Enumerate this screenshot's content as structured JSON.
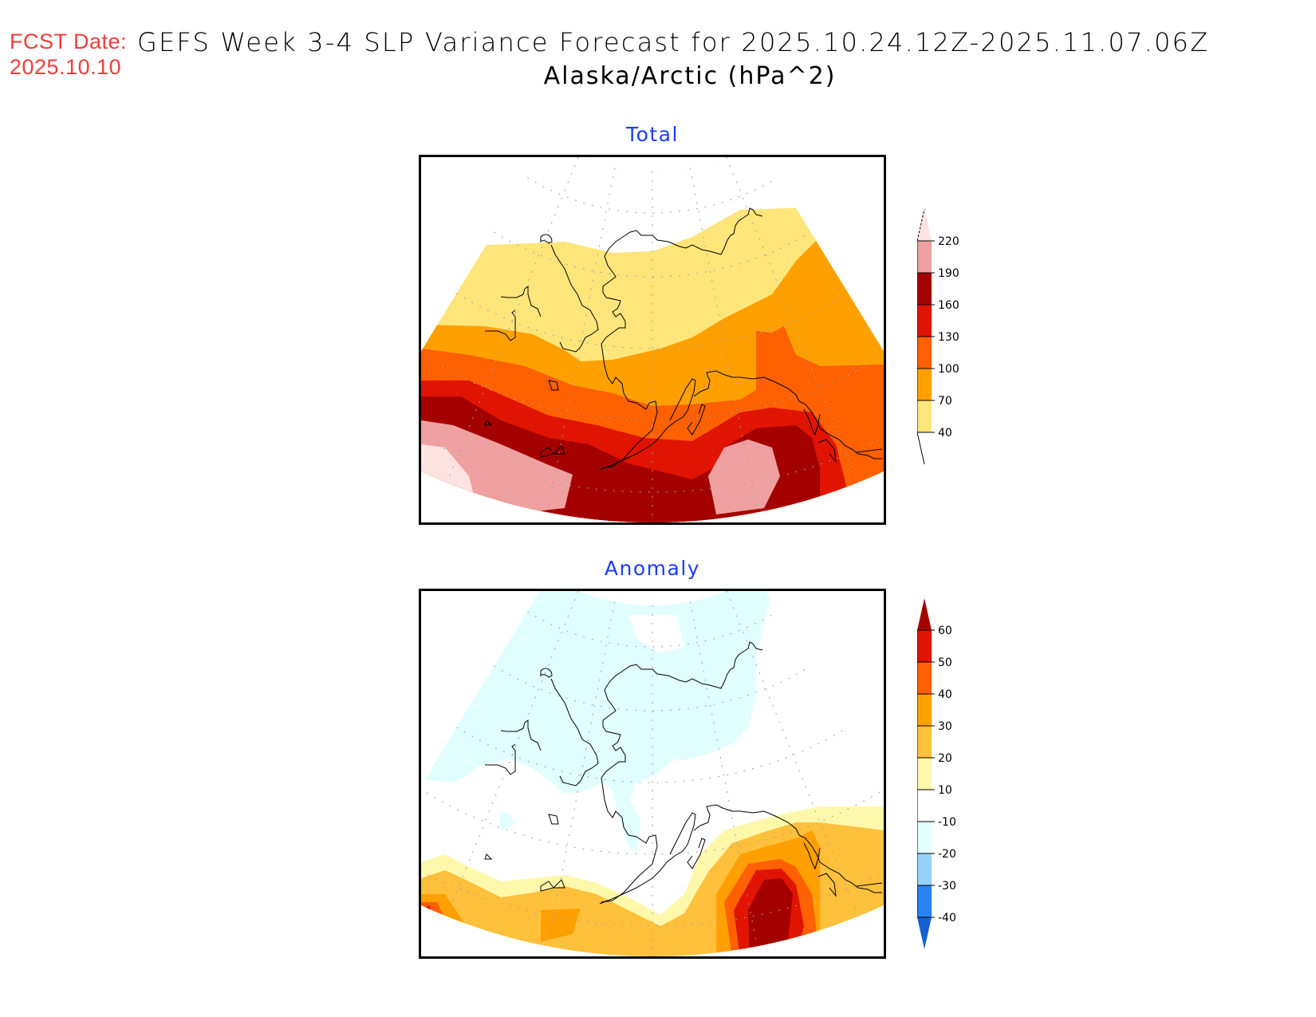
{
  "header": {
    "fcst_label": "FCST Date:",
    "fcst_date": "2025.10.10",
    "title": "GEFS Week 3-4 SLP Variance Forecast for 2025.10.24.12Z-2025.11.07.06Z",
    "subtitle": "Alaska/Arctic (hPa^2)"
  },
  "colors": {
    "fcst_text": "#f03c3c",
    "panel_title": "#1e3cf5"
  },
  "chart_data": [
    {
      "type": "heatmap",
      "title": "Total",
      "region": "Alaska/Arctic",
      "units": "hPa^2",
      "projection": "polar stereographic sector",
      "colorbar": {
        "levels": [
          40,
          70,
          100,
          130,
          160,
          190,
          220
        ],
        "tick_labels": [
          "40",
          "70",
          "100",
          "130",
          "160",
          "190",
          "220"
        ],
        "colors": [
          "#ffe57a",
          "#ffa000",
          "#ff6000",
          "#e01400",
          "#a50000",
          "#f0a0a0",
          "#fde2e2"
        ],
        "extend": "both",
        "below_color": "#ffffff"
      },
      "features": [
        "Variance increases from north (40-70) to south (190-220)",
        "Max >190 over North Pacific south of Gulf of Alaska and far western Aleutians"
      ]
    },
    {
      "type": "heatmap",
      "title": "Anomaly",
      "region": "Alaska/Arctic",
      "units": "hPa^2",
      "projection": "polar stereographic sector",
      "colorbar": {
        "levels": [
          -40,
          -30,
          -20,
          -10,
          10,
          20,
          30,
          40,
          50,
          60
        ],
        "tick_labels": [
          "-40",
          "-30",
          "-20",
          "-10",
          "10",
          "20",
          "30",
          "40",
          "50",
          "60"
        ],
        "colors": [
          "#1560d0",
          "#2882f0",
          "#96d2fa",
          "#e1ffff",
          "#ffffff",
          "#fff8aa",
          "#ffc03c",
          "#ffa000",
          "#ff6000",
          "#e01400",
          "#a50000"
        ],
        "extend": "both"
      },
      "features": [
        "Slight negative anomaly (-10 to -20) over Arctic Ocean and mainland Alaska",
        "Positive anomaly >60 in Gulf of Alaska south of panhandle",
        "Positive anomaly 20-50 along southern edge / far western Aleutians"
      ]
    }
  ]
}
